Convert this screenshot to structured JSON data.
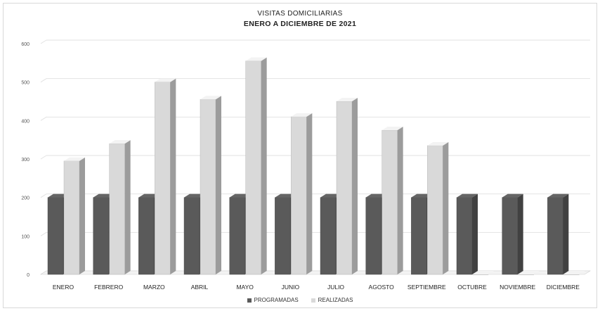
{
  "chart_data": {
    "type": "bar",
    "title": "VISITAS  DOMICILIARIAS",
    "subtitle": "ENERO A DICIEMBRE DE 2021",
    "categories": [
      "ENERO",
      "FEBRERO",
      "MARZO",
      "ABRIL",
      "MAYO",
      "JUNIO",
      "JULIO",
      "AGOSTO",
      "SEPTIEMBRE",
      "OCTUBRE",
      "NOVIEMBRE",
      "DICIEMBRE"
    ],
    "series": [
      {
        "name": "PROGRAMADAS",
        "values": [
          200,
          200,
          200,
          200,
          200,
          200,
          200,
          200,
          200,
          200,
          200,
          200
        ],
        "color": "#5a5a5a"
      },
      {
        "name": "REALIZADAS",
        "values": [
          295,
          340,
          500,
          455,
          555,
          410,
          450,
          375,
          335,
          0,
          0,
          0
        ],
        "color": "#d9d9d9"
      }
    ],
    "yticks": [
      0,
      100,
      200,
      300,
      400,
      500,
      600
    ],
    "ylim": [
      0,
      600
    ],
    "grid": true,
    "legend_position": "bottom",
    "style": "3d-column"
  }
}
